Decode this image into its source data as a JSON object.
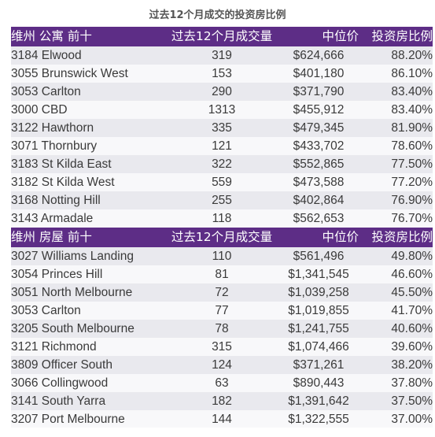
{
  "title": "过去12个月成交的投资房比例",
  "apartments": {
    "header": {
      "suburb": "维州 公寓 前十",
      "sales": "过去12个月成交量",
      "median": "中位价",
      "investor_ratio": "投资房比例"
    },
    "rows": [
      {
        "suburb": "3184 Elwood",
        "sales": "319",
        "median": "$624,666",
        "ratio": "88.20%"
      },
      {
        "suburb": "3055 Brunswick West",
        "sales": "153",
        "median": "$401,180",
        "ratio": "86.10%"
      },
      {
        "suburb": "3053 Carlton",
        "sales": "290",
        "median": "$371,790",
        "ratio": "83.40%"
      },
      {
        "suburb": "3000 CBD",
        "sales": "1313",
        "median": "$455,912",
        "ratio": "83.40%"
      },
      {
        "suburb": "3122 Hawthorn",
        "sales": "335",
        "median": "$479,345",
        "ratio": "81.90%"
      },
      {
        "suburb": "3071 Thornbury",
        "sales": "121",
        "median": "$433,702",
        "ratio": "78.60%"
      },
      {
        "suburb": "3183 St Kilda East",
        "sales": "322",
        "median": "$552,865",
        "ratio": "77.50%"
      },
      {
        "suburb": "3182 St Kilda West",
        "sales": "559",
        "median": "$473,588",
        "ratio": "77.20%"
      },
      {
        "suburb": "3168 Notting Hill",
        "sales": "255",
        "median": "$402,864",
        "ratio": "76.90%"
      },
      {
        "suburb": "3143 Armadale",
        "sales": "118",
        "median": "$562,653",
        "ratio": "76.70%"
      }
    ]
  },
  "houses": {
    "header": {
      "suburb": "维州 房屋 前十",
      "sales": "过去12个月成交量",
      "median": "中位价",
      "investor_ratio": "投资房比例"
    },
    "rows": [
      {
        "suburb": "3027 Williams Landing",
        "sales": "110",
        "median": "$561,496",
        "ratio": "49.80%"
      },
      {
        "suburb": "3054 Princes Hill",
        "sales": "81",
        "median": "$1,341,545",
        "ratio": "46.60%"
      },
      {
        "suburb": "3051 North Melbourne",
        "sales": "72",
        "median": "$1,039,258",
        "ratio": "45.50%"
      },
      {
        "suburb": "3053 Carlton",
        "sales": "77",
        "median": "$1,019,855",
        "ratio": "41.70%"
      },
      {
        "suburb": "3205 South Melbourne",
        "sales": "78",
        "median": "$1,241,755",
        "ratio": "40.60%"
      },
      {
        "suburb": "3121 Richmond",
        "sales": "315",
        "median": "$1,074,466",
        "ratio": "39.60%"
      },
      {
        "suburb": "3809 Officer South",
        "sales": "124",
        "median": "$371,261",
        "ratio": "38.20%"
      },
      {
        "suburb": "3066 Collingwood",
        "sales": "63",
        "median": "$890,443",
        "ratio": "37.80%"
      },
      {
        "suburb": "3141 South Yarra",
        "sales": "182",
        "median": "$1,391,642",
        "ratio": "37.50%"
      },
      {
        "suburb": "3207 Port Melbourne",
        "sales": "144",
        "median": "$1,322,555",
        "ratio": "37.00%"
      }
    ]
  },
  "colors": {
    "header_bg": "#5d2d86",
    "header_text": "#ffffff",
    "row_alt": "#e9e9ee",
    "row_plain": "#f8f8fa"
  }
}
